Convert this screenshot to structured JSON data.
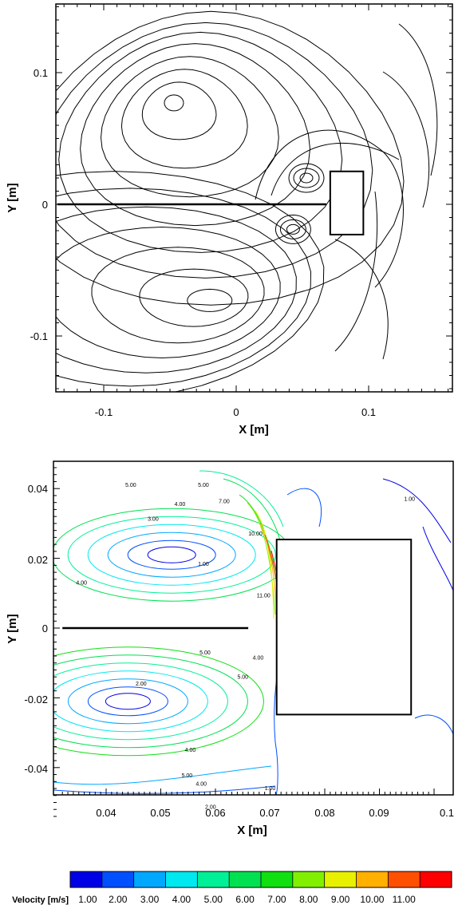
{
  "chart_data": [
    {
      "type": "streamline",
      "xlabel": "X [m]",
      "ylabel": "Y [m]",
      "xlim": [
        -0.135,
        0.16
      ],
      "ylim": [
        -0.15,
        0.155
      ],
      "xticks": [
        -0.1,
        0,
        0.1
      ],
      "xtick_labels": [
        "-0.1",
        "0",
        "0.1"
      ],
      "yticks": [
        -0.1,
        0,
        0.1
      ],
      "ytick_labels": [
        "-0.1",
        "0",
        "0.1"
      ],
      "grid": false,
      "plate": {
        "x": [
          -0.135,
          0.068
        ],
        "y": 0
      },
      "block": {
        "x": [
          0.071,
          0.096
        ],
        "y": [
          -0.023,
          0.025
        ]
      },
      "vortex_centers": [
        {
          "x": -0.047,
          "y": 0.077
        },
        {
          "x": -0.02,
          "y": -0.073
        },
        {
          "x": 0.053,
          "y": 0.02
        },
        {
          "x": 0.043,
          "y": -0.019
        }
      ]
    },
    {
      "type": "contour",
      "xlabel": "X [m]",
      "ylabel": "Y [m]",
      "xlim": [
        0.032,
        0.1
      ],
      "ylim": [
        -0.055,
        0.048
      ],
      "xticks": [
        0.04,
        0.05,
        0.06,
        0.07,
        0.08,
        0.09,
        0.1
      ],
      "xtick_labels": [
        "0.04",
        "0.05",
        "0.06",
        "0.07",
        "0.08",
        "0.09",
        "0.1"
      ],
      "yticks": [
        -0.04,
        -0.02,
        0,
        0.02,
        0.04
      ],
      "ytick_labels": [
        "-0.04",
        "-0.02",
        "0",
        "0.02",
        "0.04"
      ],
      "grid": false,
      "plate": {
        "x": [
          0.032,
          0.066
        ],
        "y": 0
      },
      "block": {
        "x": [
          0.0712,
          0.0958
        ],
        "y": [
          -0.0248,
          0.0254
        ]
      },
      "contour_labels": [
        {
          "text": "5.00",
          "x": 0.0445,
          "y": 0.0405
        },
        {
          "text": "5.00",
          "x": 0.0578,
          "y": 0.0405
        },
        {
          "text": "4.00",
          "x": 0.0535,
          "y": 0.035
        },
        {
          "text": "7.00",
          "x": 0.0616,
          "y": 0.0358
        },
        {
          "text": "3.00",
          "x": 0.0486,
          "y": 0.0308
        },
        {
          "text": "10.00",
          "x": 0.0673,
          "y": 0.0265
        },
        {
          "text": "1.00",
          "x": 0.0578,
          "y": 0.0178
        },
        {
          "text": "4.00",
          "x": 0.0355,
          "y": 0.0125
        },
        {
          "text": "11.00",
          "x": 0.0688,
          "y": 0.0088
        },
        {
          "text": "5.00",
          "x": 0.0581,
          "y": -0.0075
        },
        {
          "text": "4.00",
          "x": 0.0678,
          "y": -0.009
        },
        {
          "text": "5.00",
          "x": 0.065,
          "y": -0.0145
        },
        {
          "text": "2.00",
          "x": 0.0464,
          "y": -0.0165
        },
        {
          "text": "4.00",
          "x": 0.0554,
          "y": -0.0355
        },
        {
          "text": "5.00",
          "x": 0.0548,
          "y": -0.0428
        },
        {
          "text": "4.00",
          "x": 0.0574,
          "y": -0.0452
        },
        {
          "text": "2.00",
          "x": 0.0591,
          "y": -0.0518
        },
        {
          "text": "1.00",
          "x": 0.0955,
          "y": 0.0365
        },
        {
          "text": "1.00",
          "x": 0.07,
          "y": -0.069
        }
      ],
      "colorbar": {
        "title": "Velocity [m/s]",
        "levels": [
          1,
          2,
          3,
          4,
          5,
          6,
          7,
          8,
          9,
          10,
          11
        ],
        "labels": [
          "1.00",
          "2.00",
          "3.00",
          "4.00",
          "5.00",
          "6.00",
          "7.00",
          "8.00",
          "9.00",
          "10.00",
          "11.00"
        ],
        "colors": [
          "#0000e6",
          "#0050ff",
          "#00a8ff",
          "#00e8f0",
          "#00f098",
          "#00e050",
          "#10e010",
          "#80f000",
          "#e8f000",
          "#ffb000",
          "#ff5000",
          "#ff0000"
        ]
      }
    }
  ]
}
